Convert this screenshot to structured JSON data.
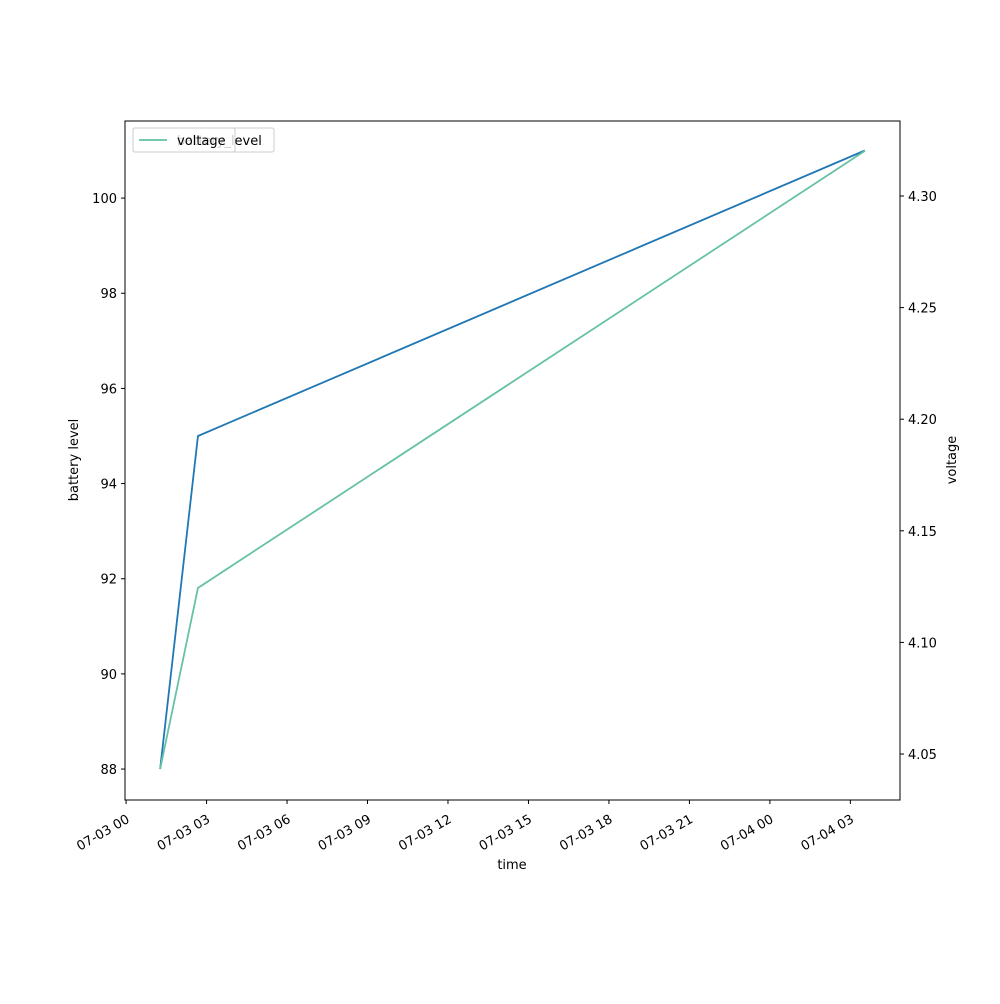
{
  "chart_data": {
    "type": "line",
    "x_label": "time",
    "y_label": "battery level",
    "y2_label": "voltage",
    "x": [
      1.27,
      2.68,
      27.54
    ],
    "series": [
      {
        "name": "battery_level",
        "color": "#1f77b4",
        "values": [
          88,
          95,
          101
        ]
      },
      {
        "name": "voltage",
        "color": "#66c2a5",
        "values": [
          4.0433,
          4.1244,
          4.3202
        ],
        "axis": "y2"
      }
    ],
    "xlim": [
      -0.04,
      28.85
    ],
    "xticks": [
      {
        "value": 0,
        "label": "07-03 00"
      },
      {
        "value": 3,
        "label": "07-03 03"
      },
      {
        "value": 6,
        "label": "07-03 06"
      },
      {
        "value": 9,
        "label": "07-03 09"
      },
      {
        "value": 12,
        "label": "07-03 12"
      },
      {
        "value": 15,
        "label": "07-03 15"
      },
      {
        "value": 18,
        "label": "07-03 18"
      },
      {
        "value": 21,
        "label": "07-03 21"
      },
      {
        "value": 24,
        "label": "07-04 00"
      },
      {
        "value": 27,
        "label": "07-04 03"
      }
    ],
    "ylim": [
      87.35,
      101.62
    ],
    "yticks": [
      88,
      90,
      92,
      94,
      96,
      98,
      100
    ],
    "y2lim": [
      4.0294,
      4.3336
    ],
    "y2ticks": [
      {
        "value": 4.05,
        "label": "4.05"
      },
      {
        "value": 4.1,
        "label": "4.10"
      },
      {
        "value": 4.15,
        "label": "4.15"
      },
      {
        "value": 4.2,
        "label": "4.20"
      },
      {
        "value": 4.25,
        "label": "4.25"
      },
      {
        "value": 4.3,
        "label": "4.30"
      }
    ],
    "legend": "upper left"
  }
}
